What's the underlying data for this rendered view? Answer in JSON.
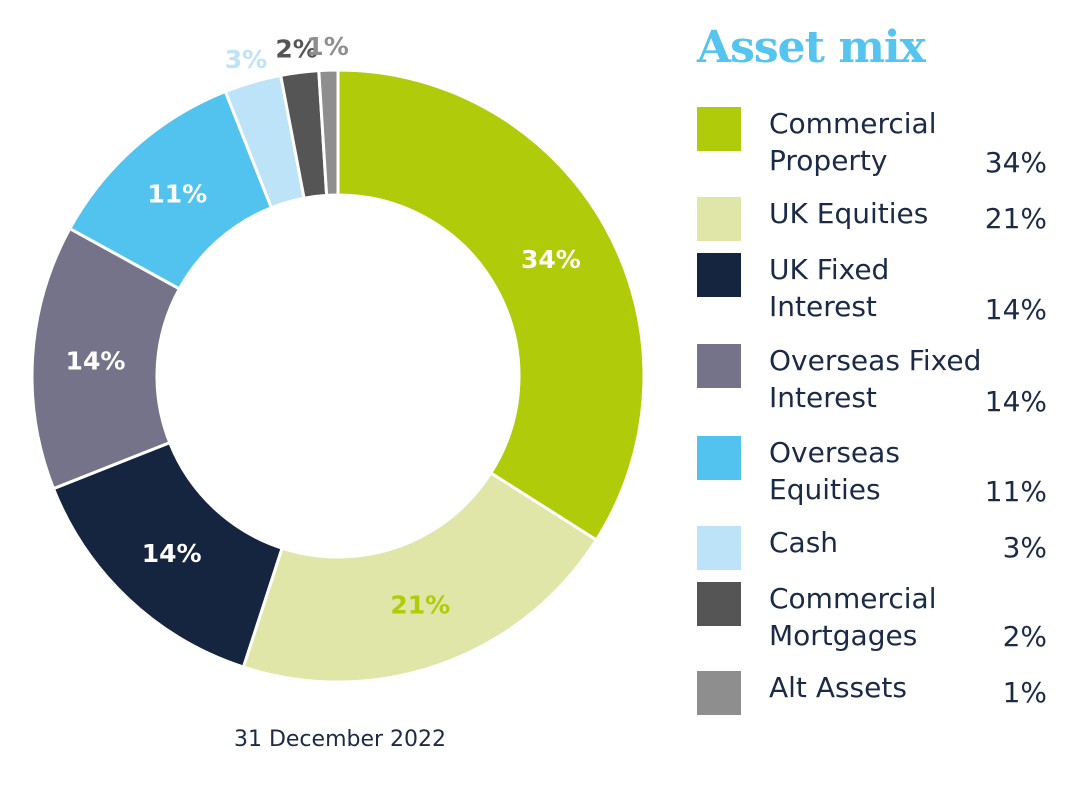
{
  "title": "Asset mix",
  "date": "31 December 2022",
  "chart_data": {
    "type": "pie",
    "variant": "donut",
    "start": "top, clockwise",
    "categories": [
      "Commercial Property",
      "UK Equities",
      "UK Fixed Interest",
      "Overseas Fixed Interest",
      "Overseas Equities",
      "Cash",
      "Commercial Mortgages",
      "Alt Assets"
    ],
    "values": [
      34,
      21,
      14,
      14,
      11,
      3,
      2,
      1
    ],
    "labels": [
      "34%",
      "21%",
      "14%",
      "14%",
      "11%",
      "3%",
      "2%",
      "1%"
    ],
    "colors": [
      "#b0cb0a",
      "#dfe6a8",
      "#15253f",
      "#75738a",
      "#52c3ef",
      "#bde3f8",
      "#555555",
      "#8e8e8e"
    ],
    "label_colors": [
      "#ffffff",
      "#b0cb0a",
      "#ffffff",
      "#ffffff",
      "#ffffff",
      "#bde3f8",
      "#555555",
      "#8e8e8e"
    ],
    "label_outside": [
      false,
      false,
      false,
      false,
      false,
      true,
      true,
      true
    ],
    "legend_position": "right"
  },
  "legend": [
    {
      "label": "Commercial Property",
      "value": "34%"
    },
    {
      "label": "UK Equities",
      "value": "21%"
    },
    {
      "label": "UK Fixed Interest",
      "value": "14%"
    },
    {
      "label": "Overseas Fixed Interest",
      "value": "14%"
    },
    {
      "label": "Overseas Equities",
      "value": "11%"
    },
    {
      "label": "Cash",
      "value": "3%"
    },
    {
      "label": "Commercial Mortgages",
      "value": "2%"
    },
    {
      "label": "Alt Assets",
      "value": "1%"
    }
  ]
}
